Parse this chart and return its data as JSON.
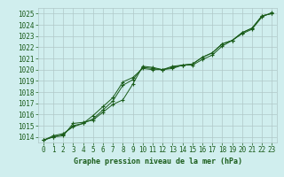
{
  "title": "Graphe pression niveau de la mer (hPa)",
  "bg_color": "#d0eeee",
  "grid_color": "#b0c8c8",
  "line_color": "#1a5c1a",
  "xlim": [
    -0.5,
    23.5
  ],
  "ylim": [
    1013.5,
    1025.5
  ],
  "xticks": [
    0,
    1,
    2,
    3,
    4,
    5,
    6,
    7,
    8,
    9,
    10,
    11,
    12,
    13,
    14,
    15,
    16,
    17,
    18,
    19,
    20,
    21,
    22,
    23
  ],
  "yticks": [
    1014,
    1015,
    1016,
    1017,
    1018,
    1019,
    1020,
    1021,
    1022,
    1023,
    1024,
    1025
  ],
  "series1_x": [
    0,
    1,
    2,
    3,
    4,
    5,
    6,
    7,
    8,
    9,
    10,
    11,
    12,
    13,
    14,
    15,
    16,
    17,
    18,
    19,
    20,
    21,
    22,
    23
  ],
  "series1_y": [
    1013.7,
    1014.0,
    1014.1,
    1015.2,
    1015.3,
    1015.5,
    1016.2,
    1016.9,
    1017.3,
    1018.7,
    1020.3,
    1020.2,
    1020.0,
    1020.3,
    1020.4,
    1020.5,
    1021.1,
    1021.5,
    1022.3,
    1022.6,
    1023.3,
    1023.7,
    1024.8,
    1025.0
  ],
  "series2_x": [
    0,
    1,
    2,
    3,
    4,
    5,
    6,
    7,
    8,
    9,
    10,
    11,
    12,
    13,
    14,
    15,
    16,
    17,
    18,
    19,
    20,
    21,
    22,
    23
  ],
  "series2_y": [
    1013.7,
    1014.0,
    1014.2,
    1015.0,
    1015.2,
    1015.6,
    1016.4,
    1017.2,
    1018.6,
    1019.1,
    1020.2,
    1020.1,
    1020.0,
    1020.2,
    1020.4,
    1020.5,
    1021.1,
    1021.5,
    1022.3,
    1022.6,
    1023.3,
    1023.7,
    1024.8,
    1025.0
  ],
  "series3_x": [
    0,
    1,
    2,
    3,
    4,
    5,
    6,
    7,
    8,
    9,
    10,
    11,
    12,
    13,
    14,
    15,
    16,
    17,
    18,
    19,
    20,
    21,
    22,
    23
  ],
  "series3_y": [
    1013.7,
    1014.1,
    1014.3,
    1014.9,
    1015.2,
    1015.9,
    1016.7,
    1017.5,
    1018.9,
    1019.3,
    1020.1,
    1020.0,
    1020.0,
    1020.1,
    1020.4,
    1020.4,
    1020.9,
    1021.3,
    1022.1,
    1022.6,
    1023.2,
    1023.6,
    1024.7,
    1025.1
  ]
}
